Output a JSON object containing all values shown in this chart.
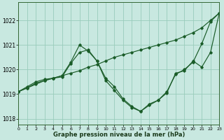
{
  "bg_color": "#c8e8e0",
  "grid_color": "#99ccbb",
  "line_color": "#1a5c28",
  "xlim": [
    0,
    23
  ],
  "ylim": [
    1017.75,
    1022.75
  ],
  "yticks": [
    1018,
    1019,
    1020,
    1021,
    1022
  ],
  "xticks": [
    0,
    1,
    2,
    3,
    4,
    5,
    6,
    7,
    8,
    9,
    10,
    11,
    12,
    13,
    14,
    15,
    16,
    17,
    18,
    19,
    20,
    21,
    22,
    23
  ],
  "xlabel": "Graphe pression niveau de la mer (hPa)",
  "series": [
    {
      "x": [
        0,
        1,
        2,
        3,
        4,
        5,
        6,
        7,
        8,
        9,
        10,
        11,
        12,
        13,
        14,
        15,
        16,
        17,
        18,
        19,
        20,
        21,
        22,
        23
      ],
      "y": [
        1019.1,
        1019.25,
        1019.4,
        1019.55,
        1019.65,
        1019.75,
        1019.85,
        1019.95,
        1020.1,
        1020.2,
        1020.35,
        1020.5,
        1020.6,
        1020.7,
        1020.8,
        1020.9,
        1021.0,
        1021.1,
        1021.2,
        1021.35,
        1021.5,
        1021.7,
        1022.0,
        1022.3
      ]
    },
    {
      "x": [
        0,
        1,
        2,
        3,
        4,
        5,
        6,
        7,
        8,
        9,
        10,
        11,
        12,
        13,
        14,
        15,
        16,
        17,
        18,
        19,
        20,
        21,
        22,
        23
      ],
      "y": [
        1019.1,
        1019.25,
        1019.45,
        1019.55,
        1019.65,
        1019.7,
        1020.25,
        1020.7,
        1020.8,
        1020.35,
        1019.55,
        1019.15,
        1018.75,
        1018.45,
        1018.3,
        1018.6,
        1018.75,
        1019.1,
        1019.8,
        1020.0,
        1020.3,
        1021.05,
        1021.95,
        1022.3
      ]
    },
    {
      "x": [
        0,
        1,
        2,
        3,
        4,
        5,
        6,
        7,
        8,
        9,
        10,
        11,
        12,
        13,
        14,
        15,
        16,
        17,
        18,
        19,
        20,
        21,
        22,
        23
      ],
      "y": [
        1019.1,
        1019.3,
        1019.5,
        1019.6,
        1019.65,
        1019.75,
        1020.3,
        1021.0,
        1020.75,
        1020.35,
        1019.65,
        1019.3,
        1018.8,
        1018.5,
        1018.3,
        1018.55,
        1018.75,
        1019.05,
        1019.85,
        1019.95,
        1020.35,
        1020.1,
        1020.7,
        1022.3
      ]
    }
  ]
}
